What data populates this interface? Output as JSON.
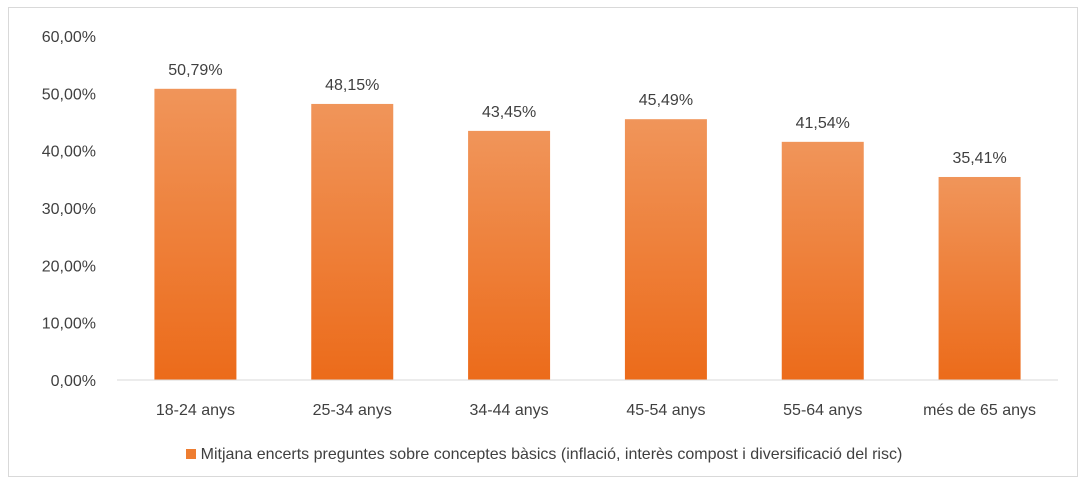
{
  "chart_data": {
    "type": "bar",
    "categories": [
      "18-24 anys",
      "25-34 anys",
      "34-44 anys",
      "45-54 anys",
      "55-64 anys",
      "més de 65 anys"
    ],
    "series": [
      {
        "name": "Mitjana encerts preguntes sobre conceptes bàsics (inflació, interès compost i diversificació del risc)",
        "values": [
          50.79,
          48.15,
          43.45,
          45.49,
          41.54,
          35.41
        ],
        "labels": [
          "50,79%",
          "48,15%",
          "43,45%",
          "45,49%",
          "41,54%",
          "35,41%"
        ]
      }
    ],
    "ylim": [
      0,
      60
    ],
    "ytick_values": [
      0,
      10,
      20,
      30,
      40,
      50,
      60
    ],
    "ytick_labels": [
      "0,00%",
      "10,00%",
      "20,00%",
      "30,00%",
      "40,00%",
      "50,00%",
      "60,00%"
    ],
    "grid": false,
    "legend_position": "bottom",
    "colors": {
      "bar_top": "#f0955a",
      "bar_bottom": "#ec6b1a",
      "legend": "#ee7d31",
      "axis": "#d9d9d9"
    }
  }
}
